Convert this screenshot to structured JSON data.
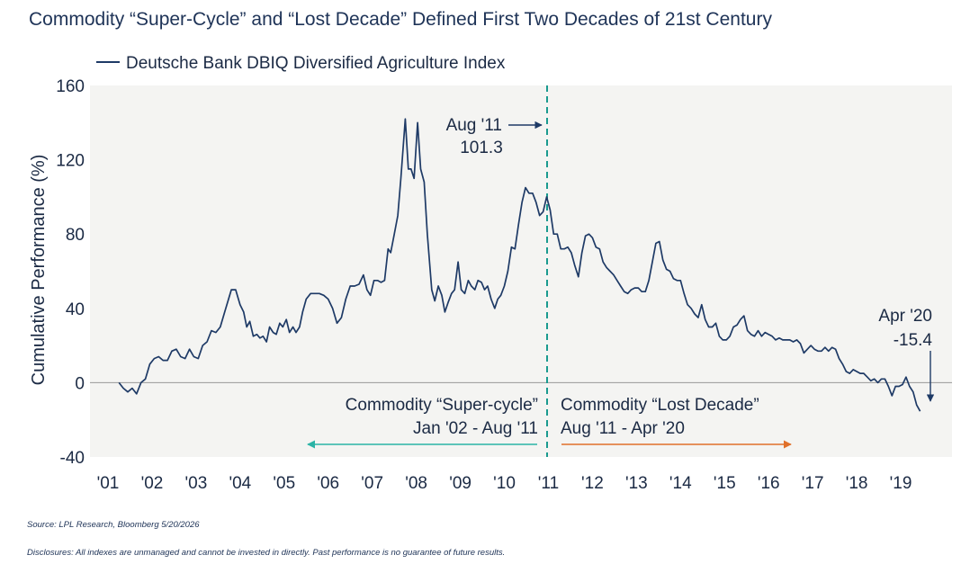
{
  "title": "Commodity “Super-Cycle” and “Lost Decade” Defined First Two Decades of 21st Century",
  "source": "Source: LPL Research, Bloomberg 5/20/2026",
  "disclosure": "Disclosures: All indexes are unmanaged and cannot be invested in directly. Past performance is no guarantee of future results.",
  "colors": {
    "line": "#1e3a66",
    "divider": "#1a9a8f",
    "super_cycle_arrow": "#2bb3a6",
    "lost_decade_arrow": "#e0702a",
    "plot_bg": "#f4f4f2",
    "zero_line": "#999999"
  },
  "chart_data": {
    "type": "line",
    "title": "Commodity “Super-Cycle” and “Lost Decade” Defined First Two Decades of 21st Century",
    "ylabel": "Cumulative Performance (%)",
    "xlabel": "",
    "ylim": [
      -40,
      160
    ],
    "xlim": [
      2001,
      2020
    ],
    "yticks": [
      -40,
      0,
      40,
      80,
      120,
      160
    ],
    "xtick_labels": [
      "'01",
      "'02",
      "'03",
      "'04",
      "'05",
      "'06",
      "'07",
      "'08",
      "'09",
      "'10",
      "'11",
      "'12",
      "'13",
      "'14",
      "'15",
      "'16",
      "'17",
      "'18",
      "'19"
    ],
    "legend": {
      "position": "top-left"
    },
    "grid": false,
    "series": [
      {
        "name": "Deutsche Bank DBIQ Diversified Agriculture Index",
        "points": [
          [
            2001.25,
            0
          ],
          [
            2001.35,
            -3
          ],
          [
            2001.45,
            -5
          ],
          [
            2001.55,
            -3
          ],
          [
            2001.65,
            -6
          ],
          [
            2001.75,
            0
          ],
          [
            2001.85,
            2
          ],
          [
            2001.95,
            10
          ],
          [
            2002.05,
            13
          ],
          [
            2002.15,
            14
          ],
          [
            2002.25,
            12
          ],
          [
            2002.35,
            12
          ],
          [
            2002.45,
            17
          ],
          [
            2002.55,
            18
          ],
          [
            2002.65,
            14
          ],
          [
            2002.75,
            13
          ],
          [
            2002.85,
            18
          ],
          [
            2002.95,
            14
          ],
          [
            2003.05,
            13
          ],
          [
            2003.15,
            20
          ],
          [
            2003.25,
            22
          ],
          [
            2003.35,
            28
          ],
          [
            2003.45,
            27
          ],
          [
            2003.55,
            30
          ],
          [
            2003.65,
            38
          ],
          [
            2003.8,
            50
          ],
          [
            2003.9,
            50
          ],
          [
            2004.0,
            42
          ],
          [
            2004.08,
            38
          ],
          [
            2004.15,
            30
          ],
          [
            2004.22,
            33
          ],
          [
            2004.3,
            25
          ],
          [
            2004.38,
            26
          ],
          [
            2004.45,
            24
          ],
          [
            2004.52,
            25
          ],
          [
            2004.6,
            22
          ],
          [
            2004.67,
            30
          ],
          [
            2004.75,
            27
          ],
          [
            2004.82,
            26
          ],
          [
            2004.9,
            32
          ],
          [
            2004.97,
            30
          ],
          [
            2005.05,
            34
          ],
          [
            2005.12,
            27
          ],
          [
            2005.2,
            30
          ],
          [
            2005.27,
            27
          ],
          [
            2005.35,
            30
          ],
          [
            2005.42,
            38
          ],
          [
            2005.5,
            45
          ],
          [
            2005.6,
            48
          ],
          [
            2005.7,
            48
          ],
          [
            2005.8,
            48
          ],
          [
            2005.9,
            47
          ],
          [
            2006.0,
            45
          ],
          [
            2006.1,
            40
          ],
          [
            2006.2,
            32
          ],
          [
            2006.3,
            35
          ],
          [
            2006.4,
            45
          ],
          [
            2006.5,
            52
          ],
          [
            2006.6,
            52
          ],
          [
            2006.7,
            53
          ],
          [
            2006.8,
            58
          ],
          [
            2006.88,
            50
          ],
          [
            2006.96,
            47
          ],
          [
            2007.04,
            55
          ],
          [
            2007.12,
            55
          ],
          [
            2007.2,
            54
          ],
          [
            2007.28,
            55
          ],
          [
            2007.36,
            72
          ],
          [
            2007.42,
            70
          ],
          [
            2007.5,
            80
          ],
          [
            2007.58,
            90
          ],
          [
            2007.65,
            110
          ],
          [
            2007.75,
            142
          ],
          [
            2007.82,
            115
          ],
          [
            2007.88,
            115
          ],
          [
            2007.95,
            110
          ],
          [
            2008.03,
            140
          ],
          [
            2008.1,
            115
          ],
          [
            2008.18,
            108
          ],
          [
            2008.25,
            80
          ],
          [
            2008.35,
            50
          ],
          [
            2008.42,
            44
          ],
          [
            2008.5,
            52
          ],
          [
            2008.58,
            47
          ],
          [
            2008.65,
            38
          ],
          [
            2008.72,
            43
          ],
          [
            2008.8,
            48
          ],
          [
            2008.87,
            50
          ],
          [
            2008.95,
            65
          ],
          [
            2009.02,
            50
          ],
          [
            2009.1,
            48
          ],
          [
            2009.18,
            55
          ],
          [
            2009.25,
            52
          ],
          [
            2009.33,
            50
          ],
          [
            2009.4,
            55
          ],
          [
            2009.48,
            54
          ],
          [
            2009.55,
            50
          ],
          [
            2009.62,
            52
          ],
          [
            2009.7,
            45
          ],
          [
            2009.78,
            40
          ],
          [
            2009.85,
            45
          ],
          [
            2009.92,
            47
          ],
          [
            2010.0,
            52
          ],
          [
            2010.08,
            60
          ],
          [
            2010.16,
            73
          ],
          [
            2010.24,
            72
          ],
          [
            2010.32,
            85
          ],
          [
            2010.4,
            97
          ],
          [
            2010.48,
            105
          ],
          [
            2010.56,
            102
          ],
          [
            2010.64,
            102
          ],
          [
            2010.72,
            97
          ],
          [
            2010.8,
            90
          ],
          [
            2010.88,
            92
          ],
          [
            2010.96,
            100
          ],
          [
            2011.04,
            93
          ],
          [
            2011.12,
            80
          ],
          [
            2011.2,
            80
          ],
          [
            2011.28,
            72
          ],
          [
            2011.36,
            72
          ],
          [
            2011.44,
            73
          ],
          [
            2011.52,
            70
          ],
          [
            2011.6,
            63
          ],
          [
            2011.68,
            57
          ],
          [
            2011.76,
            70
          ],
          [
            2011.84,
            79
          ],
          [
            2011.92,
            80
          ],
          [
            2012.0,
            78
          ],
          [
            2012.08,
            73
          ],
          [
            2012.16,
            72
          ],
          [
            2012.24,
            65
          ],
          [
            2012.32,
            62
          ],
          [
            2012.4,
            60
          ],
          [
            2012.48,
            58
          ],
          [
            2012.56,
            55
          ],
          [
            2012.64,
            52
          ],
          [
            2012.72,
            49
          ],
          [
            2012.8,
            48
          ],
          [
            2012.88,
            50
          ],
          [
            2012.96,
            51
          ],
          [
            2013.04,
            51
          ],
          [
            2013.12,
            49
          ],
          [
            2013.2,
            49
          ],
          [
            2013.28,
            55
          ],
          [
            2013.36,
            65
          ],
          [
            2013.44,
            75
          ],
          [
            2013.52,
            76
          ],
          [
            2013.6,
            66
          ],
          [
            2013.68,
            61
          ],
          [
            2013.76,
            60
          ],
          [
            2013.84,
            56
          ],
          [
            2013.92,
            55
          ],
          [
            2014.0,
            55
          ],
          [
            2014.08,
            48
          ],
          [
            2014.16,
            42
          ],
          [
            2014.24,
            40
          ],
          [
            2014.32,
            37
          ],
          [
            2014.4,
            35
          ],
          [
            2014.48,
            42
          ],
          [
            2014.56,
            34
          ],
          [
            2014.64,
            30
          ],
          [
            2014.72,
            30
          ],
          [
            2014.8,
            32
          ],
          [
            2014.88,
            25
          ],
          [
            2014.96,
            23
          ],
          [
            2015.04,
            23
          ],
          [
            2015.12,
            25
          ],
          [
            2015.2,
            30
          ],
          [
            2015.28,
            31
          ],
          [
            2015.36,
            34
          ],
          [
            2015.44,
            36
          ],
          [
            2015.52,
            28
          ],
          [
            2015.6,
            26
          ],
          [
            2015.68,
            25
          ],
          [
            2015.76,
            28
          ],
          [
            2015.84,
            25
          ],
          [
            2015.92,
            27
          ],
          [
            2016.0,
            26
          ],
          [
            2016.08,
            25
          ],
          [
            2016.16,
            23
          ],
          [
            2016.24,
            24
          ],
          [
            2016.32,
            23
          ],
          [
            2016.4,
            23
          ],
          [
            2016.48,
            23
          ],
          [
            2016.56,
            22
          ],
          [
            2016.64,
            23
          ],
          [
            2016.72,
            21
          ],
          [
            2016.8,
            16
          ],
          [
            2016.88,
            18
          ],
          [
            2016.96,
            20
          ],
          [
            2017.04,
            18
          ],
          [
            2017.12,
            17
          ],
          [
            2017.2,
            17
          ],
          [
            2017.28,
            19
          ],
          [
            2017.36,
            17
          ],
          [
            2017.44,
            19
          ],
          [
            2017.52,
            18
          ],
          [
            2017.6,
            13
          ],
          [
            2017.68,
            10
          ],
          [
            2017.76,
            6
          ],
          [
            2017.84,
            5
          ],
          [
            2017.92,
            7
          ],
          [
            2018.0,
            6
          ],
          [
            2018.08,
            5
          ],
          [
            2018.16,
            5
          ],
          [
            2018.24,
            3
          ],
          [
            2018.32,
            1
          ],
          [
            2018.4,
            2
          ],
          [
            2018.48,
            0
          ],
          [
            2018.56,
            2
          ],
          [
            2018.64,
            2
          ],
          [
            2018.72,
            -2
          ],
          [
            2018.8,
            -7
          ],
          [
            2018.88,
            -2
          ],
          [
            2018.96,
            -2
          ],
          [
            2019.04,
            -1
          ],
          [
            2019.12,
            3
          ],
          [
            2019.2,
            -2
          ],
          [
            2019.28,
            -5
          ],
          [
            2019.36,
            -12
          ],
          [
            2019.44,
            -15.4
          ]
        ]
      }
    ],
    "annotations": {
      "divider_x": 2010.97,
      "peak_label_line1": "Aug '11",
      "peak_label_line2": "101.3",
      "end_label_line1": "Apr '20",
      "end_label_line2": "-15.4",
      "super_cycle_line1": "Commodity “Super-cycle”",
      "super_cycle_line2": "Jan '02 - Aug '11",
      "lost_decade_line1": "Commodity “Lost Decade”",
      "lost_decade_line2": "Aug '11 - Apr '20"
    }
  }
}
